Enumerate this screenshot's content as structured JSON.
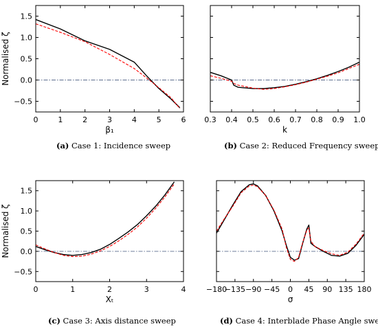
{
  "panels": [
    {
      "id": "a",
      "caption_tag": "(a)",
      "caption_text": " Case 1: Incidence sweep",
      "chart_data": {
        "type": "line",
        "ylabel": "Normalised ζ",
        "xlabel": "β₁",
        "xlim": [
          0,
          6
        ],
        "ylim": [
          -0.75,
          1.75
        ],
        "xticks": [
          0,
          1,
          2,
          3,
          4,
          5,
          6
        ],
        "yticks": [
          -0.5,
          0.0,
          0.5,
          1.0,
          1.5
        ],
        "ytick_labels": [
          "−0.5",
          "0.0",
          "0.5",
          "1.0",
          "1.5"
        ],
        "show_yticklabels": true,
        "reference_line": 0,
        "series": [
          {
            "color": "#000000",
            "style": "solid",
            "x": [
              0,
              1,
              2,
              3,
              4,
              4.5,
              5,
              5.5,
              5.85
            ],
            "y": [
              1.42,
              1.2,
              0.92,
              0.72,
              0.42,
              0.1,
              -0.2,
              -0.45,
              -0.65
            ]
          },
          {
            "color": "#ff0000",
            "style": "dashed",
            "x": [
              0,
              1,
              2,
              3,
              4,
              4.5,
              5,
              5.5,
              5.85
            ],
            "y": [
              1.32,
              1.12,
              0.9,
              0.6,
              0.27,
              0.05,
              -0.18,
              -0.42,
              -0.67
            ]
          }
        ]
      }
    },
    {
      "id": "b",
      "caption_tag": "(b)",
      "caption_text": " Case 2: Reduced Frequency sweep",
      "chart_data": {
        "type": "line",
        "ylabel": "",
        "xlabel": "k",
        "xlim": [
          0.3,
          1.0
        ],
        "ylim": [
          -0.75,
          1.75
        ],
        "xticks": [
          0.3,
          0.4,
          0.5,
          0.6,
          0.7,
          0.8,
          0.9,
          1.0
        ],
        "xtick_labels": [
          "0.3",
          "0.4",
          "0.5",
          "0.6",
          "0.7",
          "0.8",
          "0.9",
          "1.0"
        ],
        "yticks": [
          -0.5,
          0.0,
          0.5,
          1.0,
          1.5
        ],
        "show_yticklabels": false,
        "reference_line": 0,
        "series": [
          {
            "color": "#000000",
            "style": "solid",
            "x": [
              0.3,
              0.35,
              0.4,
              0.41,
              0.43,
              0.5,
              0.55,
              0.6,
              0.65,
              0.7,
              0.75,
              0.8,
              0.85,
              0.9,
              0.95,
              1.0
            ],
            "y": [
              0.18,
              0.1,
              0.0,
              -0.12,
              -0.17,
              -0.2,
              -0.2,
              -0.18,
              -0.15,
              -0.1,
              -0.04,
              0.03,
              0.11,
              0.2,
              0.3,
              0.42
            ]
          },
          {
            "color": "#ff0000",
            "style": "dashed",
            "x": [
              0.3,
              0.35,
              0.4,
              0.41,
              0.43,
              0.5,
              0.55,
              0.6,
              0.65,
              0.7,
              0.75,
              0.8,
              0.85,
              0.9,
              0.95,
              1.0
            ],
            "y": [
              0.1,
              0.04,
              -0.03,
              -0.08,
              -0.12,
              -0.19,
              -0.22,
              -0.2,
              -0.16,
              -0.11,
              -0.05,
              0.02,
              0.09,
              0.17,
              0.27,
              0.37
            ]
          }
        ]
      }
    },
    {
      "id": "c",
      "caption_tag": "(c)",
      "caption_text": " Case 3: Axis distance sweep",
      "chart_data": {
        "type": "line",
        "ylabel": "Normalised ζ",
        "xlabel": "Xₜ",
        "xlim": [
          0,
          4
        ],
        "ylim": [
          -0.75,
          1.75
        ],
        "xticks": [
          0,
          1,
          2,
          3,
          4
        ],
        "yticks": [
          -0.5,
          0.0,
          0.5,
          1.0,
          1.5
        ],
        "ytick_labels": [
          "−0.5",
          "0.0",
          "0.5",
          "1.0",
          "1.5"
        ],
        "show_yticklabels": true,
        "reference_line": 0,
        "series": [
          {
            "color": "#000000",
            "style": "solid",
            "x": [
              0,
              0.25,
              0.5,
              0.75,
              1.0,
              1.25,
              1.5,
              1.75,
              2.0,
              2.25,
              2.5,
              2.75,
              3.0,
              3.25,
              3.5,
              3.75
            ],
            "y": [
              0.12,
              0.04,
              -0.03,
              -0.08,
              -0.1,
              -0.08,
              -0.03,
              0.05,
              0.17,
              0.32,
              0.48,
              0.66,
              0.88,
              1.12,
              1.4,
              1.72
            ]
          },
          {
            "color": "#ff0000",
            "style": "dashed",
            "x": [
              0,
              0.25,
              0.5,
              0.75,
              1.0,
              1.25,
              1.5,
              1.75,
              2.0,
              2.25,
              2.5,
              2.75,
              3.0,
              3.25,
              3.5,
              3.75
            ],
            "y": [
              0.16,
              0.06,
              -0.03,
              -0.1,
              -0.13,
              -0.12,
              -0.07,
              0.01,
              0.12,
              0.26,
              0.42,
              0.6,
              0.82,
              1.07,
              1.35,
              1.67
            ]
          }
        ]
      }
    },
    {
      "id": "d",
      "caption_tag": "(d)",
      "caption_text": " Case 4: Interblade Phase Angle sweep",
      "chart_data": {
        "type": "line",
        "ylabel": "",
        "xlabel": "σ",
        "xlim": [
          -180,
          180
        ],
        "ylim": [
          -0.75,
          1.75
        ],
        "xticks": [
          -180,
          -135,
          -90,
          -45,
          0,
          45,
          90,
          135,
          180
        ],
        "xtick_labels": [
          "−180",
          "−135",
          "−90",
          "−45",
          "0",
          "45",
          "90",
          "135",
          "180"
        ],
        "yticks": [
          -0.5,
          0.0,
          0.5,
          1.0,
          1.5
        ],
        "show_yticklabels": false,
        "reference_line": 0,
        "series": [
          {
            "color": "#000000",
            "style": "solid",
            "x": [
              -180,
              -160,
              -140,
              -120,
              -100,
              -90,
              -80,
              -60,
              -40,
              -20,
              -10,
              0,
              10,
              20,
              30,
              40,
              45,
              50,
              60,
              80,
              100,
              120,
              140,
              160,
              180
            ],
            "y": [
              0.45,
              0.8,
              1.15,
              1.48,
              1.65,
              1.67,
              1.62,
              1.38,
              1.0,
              0.5,
              0.15,
              -0.15,
              -0.22,
              -0.18,
              0.2,
              0.55,
              0.65,
              0.2,
              0.12,
              0.0,
              -0.1,
              -0.12,
              -0.05,
              0.15,
              0.42
            ]
          },
          {
            "color": "#ff0000",
            "style": "dashed",
            "x": [
              -180,
              -160,
              -140,
              -120,
              -100,
              -90,
              -80,
              -60,
              -40,
              -20,
              -10,
              0,
              10,
              20,
              30,
              40,
              45,
              50,
              60,
              80,
              100,
              120,
              140,
              160,
              180
            ],
            "y": [
              0.5,
              0.82,
              1.12,
              1.45,
              1.62,
              1.64,
              1.6,
              1.38,
              1.02,
              0.55,
              0.1,
              -0.2,
              -0.25,
              -0.15,
              0.22,
              0.52,
              0.58,
              0.25,
              0.12,
              0.02,
              -0.06,
              -0.1,
              -0.02,
              0.18,
              0.45
            ]
          }
        ]
      }
    }
  ]
}
